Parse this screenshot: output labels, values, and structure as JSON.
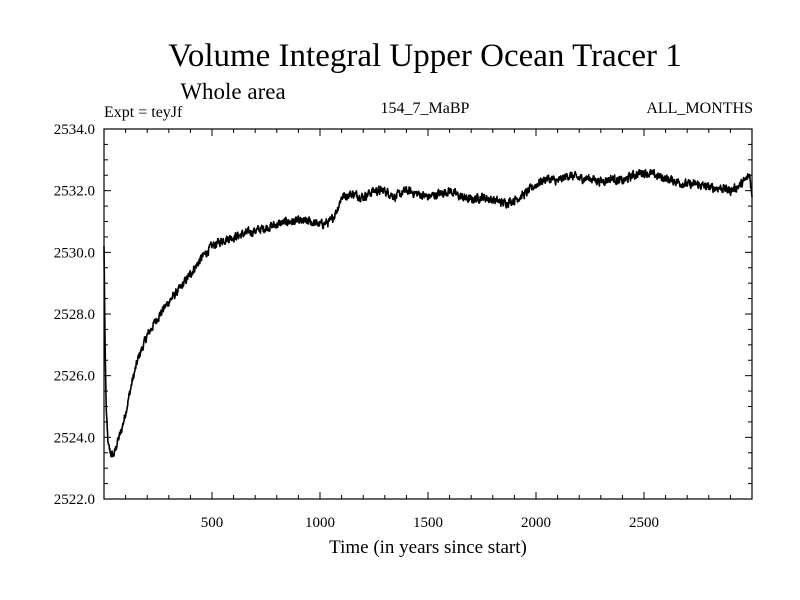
{
  "chart_data": {
    "type": "line",
    "title": "Volume Integral Upper Ocean Tracer 1",
    "subtitle": "Whole area",
    "left_label": "Expt = teyJf",
    "center_label": "154_7_MaBP",
    "right_label": "ALL_MONTHS",
    "xlabel": "Time (in years since start)",
    "ylabel": "",
    "xlim": [
      0,
      3000
    ],
    "ylim": [
      2522.0,
      2534.0
    ],
    "x_ticks": [
      500,
      1000,
      1500,
      2000,
      2500
    ],
    "x_tick_labels": [
      "500",
      "1000",
      "1500",
      "2000",
      "2500"
    ],
    "y_ticks": [
      2522,
      2524,
      2526,
      2528,
      2530,
      2532,
      2534
    ],
    "y_tick_labels": [
      "2522.0",
      "2524.0",
      "2526.0",
      "2528.0",
      "2530.0",
      "2532.0",
      "2534.0"
    ],
    "grid": false,
    "noise_amplitude": 0.22,
    "series": [
      {
        "name": "Tracer 1",
        "x": [
          0,
          5,
          10,
          15,
          20,
          30,
          40,
          50,
          60,
          80,
          100,
          130,
          160,
          200,
          250,
          300,
          350,
          400,
          450,
          500,
          550,
          600,
          650,
          700,
          750,
          800,
          850,
          900,
          950,
          1000,
          1050,
          1080,
          1100,
          1150,
          1200,
          1250,
          1300,
          1350,
          1400,
          1450,
          1500,
          1550,
          1600,
          1650,
          1700,
          1750,
          1800,
          1850,
          1900,
          1950,
          2000,
          2050,
          2100,
          2150,
          2200,
          2250,
          2300,
          2350,
          2400,
          2450,
          2500,
          2550,
          2600,
          2650,
          2700,
          2750,
          2800,
          2850,
          2900,
          2950,
          2990,
          3000
        ],
        "values": [
          2530.2,
          2527.0,
          2525.0,
          2524.2,
          2523.7,
          2523.5,
          2523.4,
          2523.5,
          2523.8,
          2524.2,
          2524.8,
          2525.8,
          2526.6,
          2527.3,
          2527.9,
          2528.4,
          2528.8,
          2529.3,
          2529.8,
          2530.2,
          2530.4,
          2530.5,
          2530.6,
          2530.7,
          2530.8,
          2530.9,
          2531.0,
          2531.0,
          2531.0,
          2530.9,
          2531.0,
          2531.4,
          2531.8,
          2531.9,
          2531.8,
          2532.0,
          2532.0,
          2531.8,
          2532.0,
          2531.9,
          2531.8,
          2531.9,
          2532.0,
          2531.8,
          2531.7,
          2531.8,
          2531.7,
          2531.6,
          2531.7,
          2531.9,
          2532.2,
          2532.4,
          2532.3,
          2532.5,
          2532.4,
          2532.4,
          2532.3,
          2532.4,
          2532.3,
          2532.5,
          2532.6,
          2532.5,
          2532.4,
          2532.3,
          2532.2,
          2532.2,
          2532.1,
          2532.1,
          2532.0,
          2532.2,
          2532.5,
          2531.8
        ]
      }
    ]
  }
}
